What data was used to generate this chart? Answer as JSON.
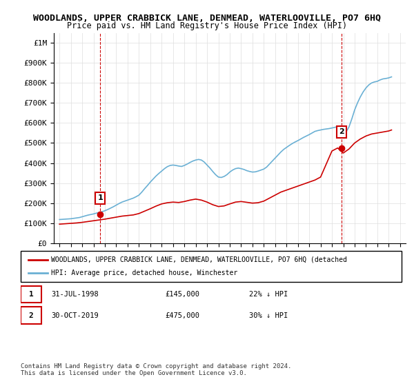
{
  "title": "WOODLANDS, UPPER CRABBICK LANE, DENMEAD, WATERLOOVILLE, PO7 6HQ",
  "subtitle": "Price paid vs. HM Land Registry's House Price Index (HPI)",
  "ylim": [
    0,
    1050000
  ],
  "yticks": [
    0,
    100000,
    200000,
    300000,
    400000,
    500000,
    600000,
    700000,
    800000,
    900000,
    1000000
  ],
  "ytick_labels": [
    "£0",
    "£100K",
    "£200K",
    "£300K",
    "£400K",
    "£500K",
    "£600K",
    "£700K",
    "£800K",
    "£900K",
    "£1M"
  ],
  "sale1_date_num": 1998.58,
  "sale1_price": 145000,
  "sale1_label": "1",
  "sale2_date_num": 2019.83,
  "sale2_price": 475000,
  "sale2_label": "2",
  "sale_color": "#cc0000",
  "hpi_color": "#6ab0d4",
  "vline_color": "#cc0000",
  "legend_label_price": "WOODLANDS, UPPER CRABBICK LANE, DENMEAD, WATERLOOVILLE, PO7 6HQ (detached",
  "legend_label_hpi": "HPI: Average price, detached house, Winchester",
  "annotation1": "1    31-JUL-1998    £145,000    22% ↓ HPI",
  "annotation2": "2    30-OCT-2019    £475,000    30% ↓ HPI",
  "footnote": "Contains HM Land Registry data © Crown copyright and database right 2024.\nThis data is licensed under the Open Government Licence v3.0.",
  "title_fontsize": 10,
  "subtitle_fontsize": 9,
  "tick_fontsize": 8,
  "hpi_data": {
    "years": [
      1995,
      1995.25,
      1995.5,
      1995.75,
      1996,
      1996.25,
      1996.5,
      1996.75,
      1997,
      1997.25,
      1997.5,
      1997.75,
      1998,
      1998.25,
      1998.5,
      1998.75,
      1999,
      1999.25,
      1999.5,
      1999.75,
      2000,
      2000.25,
      2000.5,
      2000.75,
      2001,
      2001.25,
      2001.5,
      2001.75,
      2002,
      2002.25,
      2002.5,
      2002.75,
      2003,
      2003.25,
      2003.5,
      2003.75,
      2004,
      2004.25,
      2004.5,
      2004.75,
      2005,
      2005.25,
      2005.5,
      2005.75,
      2006,
      2006.25,
      2006.5,
      2006.75,
      2007,
      2007.25,
      2007.5,
      2007.75,
      2008,
      2008.25,
      2008.5,
      2008.75,
      2009,
      2009.25,
      2009.5,
      2009.75,
      2010,
      2010.25,
      2010.5,
      2010.75,
      2011,
      2011.25,
      2011.5,
      2011.75,
      2012,
      2012.25,
      2012.5,
      2012.75,
      2013,
      2013.25,
      2013.5,
      2013.75,
      2014,
      2014.25,
      2014.5,
      2014.75,
      2015,
      2015.25,
      2015.5,
      2015.75,
      2016,
      2016.25,
      2016.5,
      2016.75,
      2017,
      2017.25,
      2017.5,
      2017.75,
      2018,
      2018.25,
      2018.5,
      2018.75,
      2019,
      2019.25,
      2019.5,
      2019.75,
      2020,
      2020.25,
      2020.5,
      2020.75,
      2021,
      2021.25,
      2021.5,
      2021.75,
      2022,
      2022.25,
      2022.5,
      2022.75,
      2023,
      2023.25,
      2023.5,
      2023.75,
      2024,
      2024.25
    ],
    "values": [
      118000,
      119000,
      120000,
      121000,
      122000,
      124000,
      126000,
      128000,
      132000,
      136000,
      140000,
      143000,
      146000,
      150000,
      153000,
      157000,
      162000,
      168000,
      175000,
      182000,
      190000,
      198000,
      205000,
      210000,
      215000,
      220000,
      225000,
      232000,
      240000,
      255000,
      272000,
      288000,
      305000,
      320000,
      335000,
      348000,
      360000,
      372000,
      382000,
      388000,
      390000,
      388000,
      385000,
      383000,
      388000,
      395000,
      403000,
      410000,
      415000,
      418000,
      415000,
      405000,
      390000,
      375000,
      358000,
      342000,
      330000,
      328000,
      333000,
      342000,
      355000,
      365000,
      372000,
      375000,
      372000,
      368000,
      362000,
      358000,
      355000,
      356000,
      360000,
      365000,
      370000,
      380000,
      395000,
      410000,
      425000,
      440000,
      455000,
      468000,
      478000,
      488000,
      497000,
      505000,
      512000,
      520000,
      528000,
      535000,
      542000,
      550000,
      558000,
      562000,
      565000,
      568000,
      570000,
      572000,
      575000,
      578000,
      582000,
      586000,
      580000,
      555000,
      580000,
      620000,
      665000,
      700000,
      730000,
      755000,
      775000,
      790000,
      800000,
      805000,
      808000,
      815000,
      820000,
      822000,
      825000,
      830000
    ]
  },
  "price_data": {
    "years": [
      1995,
      1995.5,
      1996,
      1996.5,
      1997,
      1997.5,
      1998,
      1998.5,
      1999,
      1999.5,
      2000,
      2000.5,
      2001,
      2001.5,
      2002,
      2002.5,
      2003,
      2003.5,
      2004,
      2004.5,
      2005,
      2005.5,
      2006,
      2006.5,
      2007,
      2007.5,
      2008,
      2008.5,
      2009,
      2009.5,
      2010,
      2010.5,
      2011,
      2011.5,
      2012,
      2012.5,
      2013,
      2013.5,
      2014,
      2014.5,
      2015,
      2015.5,
      2016,
      2016.5,
      2017,
      2017.5,
      2018,
      2018.5,
      2019,
      2019.5,
      2020,
      2020.5,
      2021,
      2021.5,
      2022,
      2022.5,
      2023,
      2023.5,
      2024,
      2024.25
    ],
    "values": [
      95000,
      97000,
      99000,
      101000,
      104000,
      108000,
      112000,
      116000,
      120000,
      125000,
      130000,
      135000,
      138000,
      141000,
      148000,
      160000,
      172000,
      185000,
      196000,
      202000,
      205000,
      203000,
      208000,
      215000,
      220000,
      215000,
      205000,
      192000,
      183000,
      186000,
      196000,
      205000,
      208000,
      204000,
      200000,
      202000,
      210000,
      225000,
      240000,
      255000,
      265000,
      275000,
      285000,
      295000,
      305000,
      315000,
      330000,
      395000,
      460000,
      475000,
      450000,
      470000,
      500000,
      520000,
      535000,
      545000,
      550000,
      555000,
      560000,
      565000
    ]
  }
}
